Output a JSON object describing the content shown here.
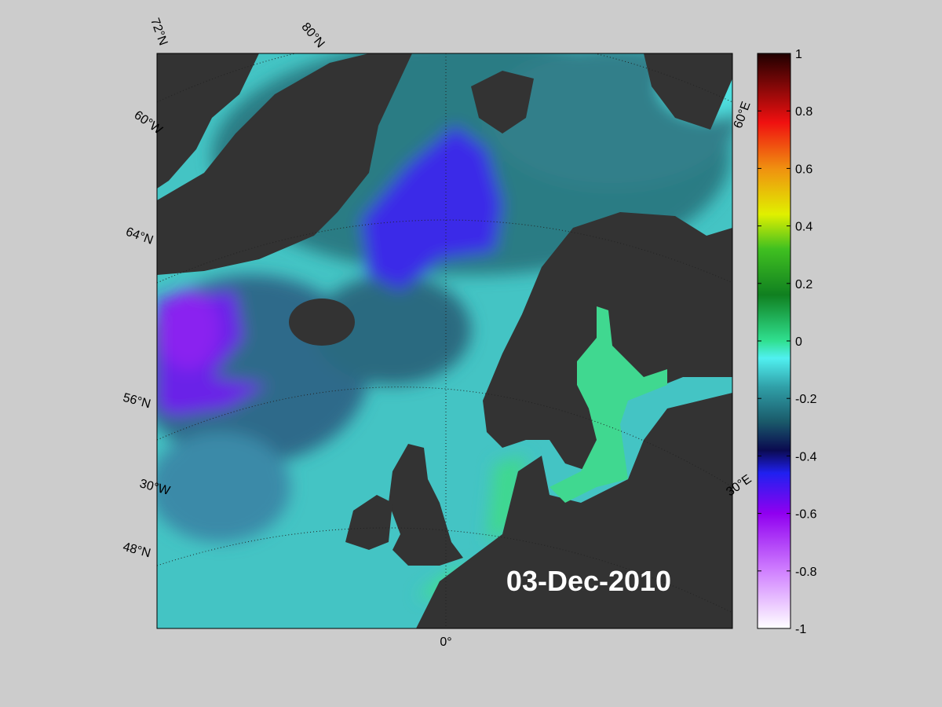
{
  "map": {
    "date": "03-Dec-2010",
    "graticule_labels": [
      "72°N",
      "80°N",
      "60°W",
      "64°N",
      "56°N",
      "30°W",
      "48°N",
      "0°",
      "30°E",
      "60°E"
    ],
    "colorbar": {
      "range": [
        -1,
        1
      ],
      "ticks": [
        -1,
        -0.8,
        -0.6,
        -0.4,
        -0.2,
        0,
        0.2,
        0.4,
        0.6,
        0.8,
        1
      ]
    }
  }
}
